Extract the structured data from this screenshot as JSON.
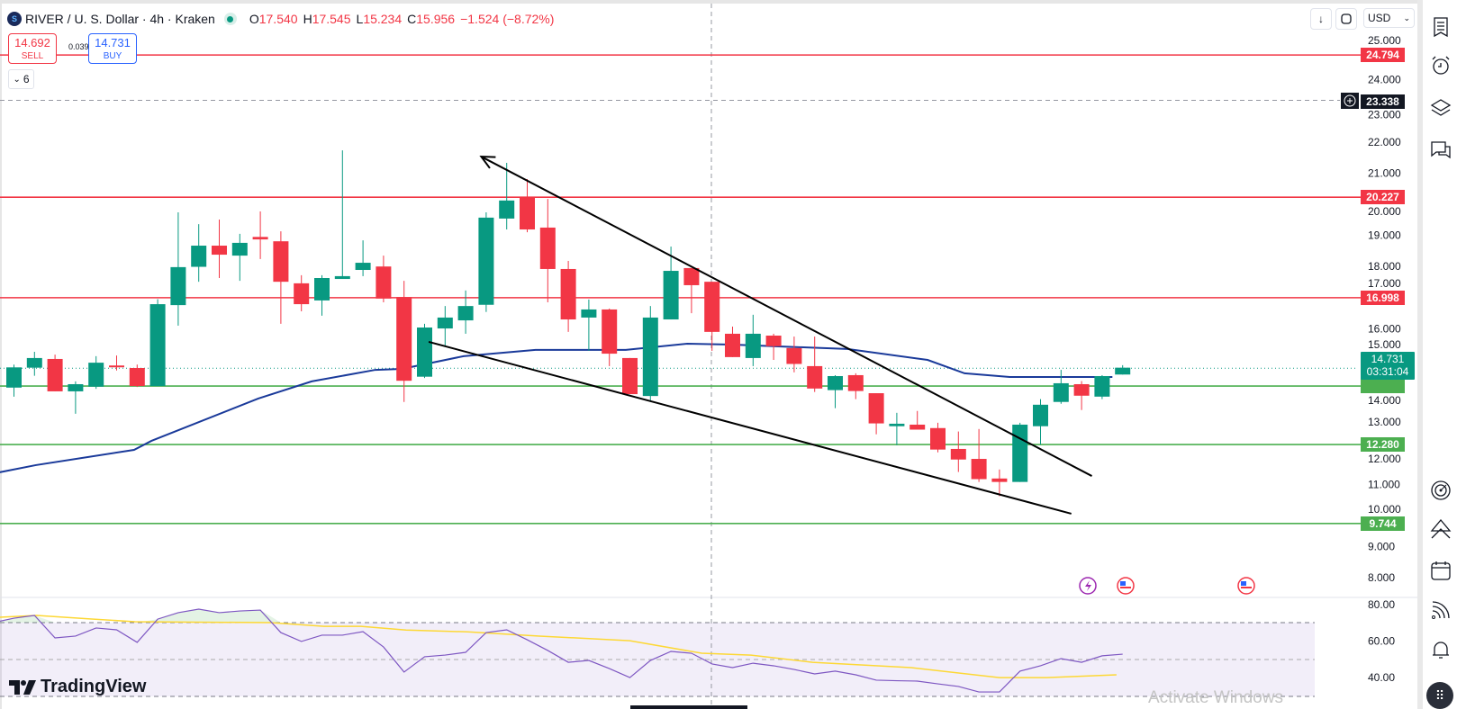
{
  "header": {
    "symbol_title": "RIVER / U. S. Dollar · 4h · Kraken",
    "ohlc": {
      "o_label": "O",
      "o": "17.540",
      "h_label": "H",
      "h": "17.545",
      "l_label": "L",
      "l": "15.234",
      "c_label": "C",
      "c": "15.956",
      "change": "−1.524 (−8.72%)"
    },
    "sell_price": "14.692",
    "sell_label": "SELL",
    "spread": "0.039",
    "buy_price": "14.731",
    "buy_label": "BUY",
    "indicators_count": "6",
    "currency": "USD"
  },
  "colors": {
    "up": "#089981",
    "down": "#F23645",
    "level_red": "#F23645",
    "level_green": "#4CAF50",
    "ma": "#1a3a9a",
    "rsi": "#7E57C2",
    "rsi_ma": "#FDD835"
  },
  "price_axis": {
    "ticks": [
      "25.000",
      "24.000",
      "23.000",
      "22.000",
      "21.000",
      "20.000",
      "19.000",
      "18.000",
      "17.000",
      "16.000",
      "15.000",
      "14.000",
      "13.000",
      "12.000",
      "11.000",
      "10.000",
      "9.000",
      "8.000"
    ]
  },
  "levels": [
    {
      "value": 24.794,
      "label": "24.794",
      "color": "red"
    },
    {
      "value": 20.227,
      "label": "20.227",
      "color": "red"
    },
    {
      "value": 16.998,
      "label": "16.998",
      "color": "red"
    },
    {
      "value": 14.16,
      "label": "",
      "color": "green"
    },
    {
      "value": 12.28,
      "label": "12.280",
      "color": "green"
    },
    {
      "value": 9.744,
      "label": "9.744",
      "color": "green"
    }
  ],
  "crosshair": {
    "price": "23.338",
    "value": 23.338
  },
  "current": {
    "price": "14.731",
    "value": 14.731,
    "countdown": "03:31:04"
  },
  "candles": [
    [
      14.11,
      14.85,
      13.82,
      14.76
    ],
    [
      14.75,
      15.26,
      14.49,
      15.06
    ],
    [
      15.03,
      15.17,
      13.99,
      13.99
    ],
    [
      13.99,
      14.31,
      13.27,
      14.22
    ],
    [
      14.14,
      15.12,
      14.07,
      14.91
    ],
    [
      14.82,
      15.14,
      14.66,
      14.8
    ],
    [
      14.74,
      14.85,
      14.13,
      14.16
    ],
    [
      14.16,
      16.95,
      14.16,
      16.79
    ],
    [
      16.76,
      19.74,
      16.1,
      17.98
    ],
    [
      17.99,
      19.36,
      17.51,
      18.67
    ],
    [
      18.67,
      19.51,
      17.63,
      18.38
    ],
    [
      18.35,
      19.05,
      17.54,
      18.76
    ],
    [
      18.95,
      19.77,
      18.24,
      18.87
    ],
    [
      18.81,
      19.13,
      16.16,
      17.51
    ],
    [
      17.46,
      17.72,
      16.56,
      16.79
    ],
    [
      16.91,
      17.72,
      16.42,
      17.63
    ],
    [
      17.6,
      21.73,
      17.6,
      17.69
    ],
    [
      17.89,
      18.84,
      17.69,
      18.12
    ],
    [
      18.0,
      18.35,
      16.85,
      16.97
    ],
    [
      17.02,
      17.54,
      13.65,
      14.33
    ],
    [
      14.46,
      16.16,
      14.42,
      16.04
    ],
    [
      16.01,
      16.73,
      15.46,
      16.36
    ],
    [
      16.27,
      17.23,
      15.84,
      16.73
    ],
    [
      16.77,
      19.74,
      16.54,
      19.57
    ],
    [
      19.54,
      21.33,
      19.19,
      20.12
    ],
    [
      20.23,
      20.81,
      19.1,
      19.19
    ],
    [
      19.25,
      20.17,
      16.85,
      17.92
    ],
    [
      17.92,
      18.18,
      15.9,
      16.3
    ],
    [
      16.36,
      16.94,
      15.29,
      16.62
    ],
    [
      16.62,
      16.65,
      14.8,
      15.2
    ],
    [
      15.06,
      15.06,
      13.9,
      13.9
    ],
    [
      13.84,
      16.73,
      13.7,
      16.36
    ],
    [
      16.3,
      18.64,
      16.3,
      17.86
    ],
    [
      17.95,
      17.95,
      16.5,
      17.4
    ],
    [
      17.51,
      17.51,
      15.29,
      15.9
    ],
    [
      15.84,
      16.07,
      15.09,
      15.09
    ],
    [
      15.06,
      16.45,
      14.8,
      15.84
    ],
    [
      15.78,
      15.84,
      15.0,
      15.44
    ],
    [
      15.38,
      15.75,
      14.6,
      14.87
    ],
    [
      14.8,
      15.75,
      13.97,
      14.08
    ],
    [
      14.03,
      14.51,
      13.45,
      14.48
    ],
    [
      14.51,
      14.57,
      13.74,
      14.0
    ],
    [
      13.93,
      13.93,
      12.61,
      12.96
    ],
    [
      12.87,
      13.3,
      12.26,
      12.95
    ],
    [
      12.92,
      13.36,
      12.76,
      12.76
    ],
    [
      12.81,
      12.98,
      12.03,
      12.12
    ],
    [
      12.14,
      12.7,
      11.4,
      11.8
    ],
    [
      11.82,
      12.78,
      11.08,
      11.17
    ],
    [
      11.19,
      11.48,
      10.62,
      11.08
    ],
    [
      11.08,
      12.98,
      11.08,
      12.92
    ],
    [
      12.87,
      13.74,
      12.28,
      13.56
    ],
    [
      13.65,
      14.68,
      13.59,
      14.25
    ],
    [
      14.22,
      14.32,
      13.39,
      13.85
    ],
    [
      13.82,
      14.51,
      13.74,
      14.48
    ],
    [
      14.53,
      14.83,
      14.53,
      14.75
    ]
  ],
  "ma": [
    [
      -0.7,
      11.39
    ],
    [
      1.07,
      11.62
    ],
    [
      5.85,
      12.11
    ],
    [
      6.7,
      12.4
    ],
    [
      11.9,
      13.76
    ],
    [
      14.5,
      14.31
    ],
    [
      17.6,
      14.68
    ],
    [
      18.9,
      14.71
    ],
    [
      21.9,
      15.12
    ],
    [
      25.4,
      15.32
    ],
    [
      29.8,
      15.32
    ],
    [
      32.8,
      15.52
    ],
    [
      35,
      15.49
    ],
    [
      40.6,
      15.35
    ],
    [
      44.5,
      15.0
    ],
    [
      46.3,
      14.57
    ],
    [
      48.5,
      14.45
    ],
    [
      53.5,
      14.45
    ]
  ],
  "trendlines": [
    {
      "from": [
        22.76,
        21.53
      ],
      "to": [
        52.5,
        11.27
      ],
      "arrow": "start"
    },
    {
      "from": [
        20.2,
        15.58
      ],
      "to": [
        51.5,
        10.06
      ],
      "arrow": "none"
    }
  ],
  "rsi_axis": {
    "ticks": [
      "80.00",
      "60.00",
      "40.00"
    ],
    "upper": 70,
    "middle": 50,
    "lower": 30
  },
  "rsi": [
    70.0,
    72.4,
    73.9,
    61.7,
    62.7,
    67.1,
    66.1,
    59.3,
    71.9,
    75.4,
    77.3,
    75.4,
    76.3,
    76.8,
    64.6,
    59.8,
    63.2,
    63.2,
    65.1,
    56.8,
    43.2,
    51.5,
    52.4,
    53.9,
    64.6,
    66.1,
    60.7,
    54.9,
    48.5,
    49.5,
    45.1,
    40.2,
    49.5,
    54.4,
    53.4,
    47.6,
    45.6,
    48.0,
    46.6,
    44.6,
    42.2,
    43.7,
    41.7,
    38.8,
    38.5,
    38.3,
    36.8,
    35.4,
    32.4,
    32.4,
    43.7,
    46.6,
    50.5,
    48.5,
    52.0,
    52.9
  ],
  "rsi_ma": [
    [
      -0.7,
      72.9
    ],
    [
      1.1,
      73.9
    ],
    [
      3.7,
      72
    ],
    [
      5.9,
      70.5
    ],
    [
      12.5,
      70
    ],
    [
      15.1,
      68
    ],
    [
      16.9,
      68
    ],
    [
      19.1,
      66
    ],
    [
      22.1,
      65
    ],
    [
      25.6,
      62.7
    ],
    [
      30,
      60.2
    ],
    [
      33.5,
      53.4
    ],
    [
      35.9,
      52.4
    ],
    [
      38.9,
      48.5
    ],
    [
      43.7,
      45.6
    ],
    [
      48,
      40.2
    ],
    [
      50.3,
      40.2
    ],
    [
      53.7,
      41.7
    ]
  ],
  "events": [
    "lightning-icon",
    "us-flag-icon",
    "us-flag-icon"
  ],
  "branding": {
    "logo_text": "TradingView",
    "watermark": "Activate Windows"
  }
}
